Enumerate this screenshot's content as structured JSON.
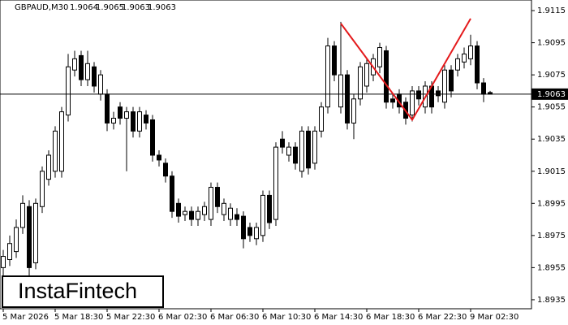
{
  "chart_data": {
    "type": "candlestick",
    "title": "GBPAUD,M30",
    "watermark": "InstaFintech",
    "categories": [
      "5 Mar 2026",
      null,
      null,
      null,
      null,
      null,
      null,
      null,
      "5 Mar 18:30",
      null,
      null,
      null,
      null,
      null,
      null,
      null,
      "5 Mar 22:30",
      null,
      null,
      null,
      null,
      null,
      null,
      null,
      "6 Mar 02:30",
      null,
      null,
      null,
      null,
      null,
      null,
      null,
      "6 Mar 06:30",
      null,
      null,
      null,
      null,
      null,
      null,
      null,
      "6 Mar 10:30",
      null,
      null,
      null,
      null,
      null,
      null,
      null,
      "6 Mar 14:30",
      null,
      null,
      null,
      null,
      null,
      null,
      null,
      "6 Mar 18:30",
      null,
      null,
      null,
      null,
      null,
      null,
      null,
      "6 Mar 22:30",
      null,
      null,
      null,
      null,
      null,
      null,
      null,
      "9 Mar 02:30",
      null,
      null,
      null
    ],
    "series": {
      "open": [
        1.8955,
        1.896,
        1.8965,
        1.898,
        1.8993,
        1.8958,
        1.8993,
        1.901,
        1.9015,
        1.9015,
        1.905,
        1.9078,
        1.9087,
        1.9072,
        1.908,
        1.9063,
        1.9063,
        1.9045,
        1.9055,
        1.9048,
        1.9052,
        1.904,
        1.905,
        1.9047,
        1.9025,
        1.902,
        1.9012,
        1.8995,
        1.8988,
        1.899,
        1.8985,
        1.8988,
        1.8985,
        1.9005,
        1.8988,
        1.8985,
        1.8988,
        1.8987,
        1.898,
        1.8973,
        1.8975,
        1.9,
        1.8985,
        1.9035,
        1.9025,
        1.903,
        1.9015,
        1.904,
        1.902,
        1.904,
        1.9055,
        1.9093,
        1.9055,
        1.9075,
        1.9045,
        1.906,
        1.9068,
        1.9075,
        1.908,
        1.909,
        1.906,
        1.9063,
        1.9058,
        1.905,
        1.9065,
        1.9055,
        1.9068,
        1.9065,
        1.9058,
        1.9078,
        1.9078,
        1.9083,
        1.9085,
        1.9093,
        1.907,
        1.9064
      ],
      "high": [
        1.8966,
        1.8975,
        1.8985,
        1.9,
        1.8997,
        1.8998,
        1.9018,
        1.9028,
        1.9043,
        1.9055,
        1.9088,
        1.909,
        1.909,
        1.909,
        1.9083,
        1.9078,
        1.9066,
        1.9052,
        1.9058,
        1.9055,
        1.9055,
        1.9055,
        1.9053,
        1.905,
        1.9028,
        1.9023,
        1.9015,
        1.8998,
        1.8993,
        1.8993,
        1.8993,
        1.8996,
        1.9008,
        1.9008,
        1.8998,
        1.8995,
        1.8992,
        1.899,
        1.8983,
        1.8983,
        1.9003,
        1.9003,
        1.9033,
        1.904,
        1.9033,
        1.9033,
        1.9043,
        1.9043,
        1.9043,
        1.9058,
        1.9098,
        1.9096,
        1.9108,
        1.9078,
        1.9063,
        1.9083,
        1.9085,
        1.9088,
        1.9095,
        1.9093,
        1.9063,
        1.9066,
        1.9061,
        1.9068,
        1.9068,
        1.9071,
        1.9071,
        1.9068,
        1.9081,
        1.9081,
        1.9088,
        1.9092,
        1.91,
        1.9096,
        1.9073,
        1.9065
      ],
      "low": [
        1.895,
        1.8956,
        1.8961,
        1.8976,
        1.895,
        1.8954,
        1.8989,
        1.9006,
        1.9011,
        1.9011,
        1.9046,
        1.9074,
        1.9068,
        1.9068,
        1.9064,
        1.9059,
        1.904,
        1.9041,
        1.9044,
        1.9015,
        1.9036,
        1.9036,
        1.9041,
        1.9021,
        1.9018,
        1.9008,
        1.8986,
        1.8983,
        1.8984,
        1.8981,
        1.8981,
        1.8984,
        1.8981,
        1.8989,
        1.8984,
        1.8981,
        1.8981,
        1.8967,
        1.8971,
        1.8969,
        1.8971,
        1.8979,
        1.8981,
        1.9026,
        1.9021,
        1.9016,
        1.9011,
        1.9013,
        1.9016,
        1.9036,
        1.9051,
        1.9071,
        1.9051,
        1.9041,
        1.9035,
        1.9056,
        1.9064,
        1.9071,
        1.9076,
        1.9054,
        1.9054,
        1.9051,
        1.9044,
        1.9046,
        1.9056,
        1.9051,
        1.9051,
        1.9058,
        1.9054,
        1.9061,
        1.9074,
        1.9079,
        1.9081,
        1.9066,
        1.9058,
        1.9063
      ],
      "close": [
        1.8962,
        1.897,
        1.898,
        1.8995,
        1.8955,
        1.8995,
        1.9015,
        1.9025,
        1.904,
        1.9052,
        1.908,
        1.9085,
        1.9072,
        1.9082,
        1.9068,
        1.9075,
        1.9045,
        1.9048,
        1.9048,
        1.9052,
        1.904,
        1.9052,
        1.9045,
        1.9025,
        1.9022,
        1.9012,
        1.899,
        1.8987,
        1.899,
        1.8985,
        1.899,
        1.8993,
        1.9005,
        1.8993,
        1.8995,
        1.8992,
        1.8985,
        1.8973,
        1.8975,
        1.898,
        1.9,
        1.8983,
        1.903,
        1.903,
        1.903,
        1.902,
        1.904,
        1.9017,
        1.904,
        1.9055,
        1.9093,
        1.9075,
        1.9075,
        1.9045,
        1.906,
        1.908,
        1.9082,
        1.9085,
        1.9092,
        1.9058,
        1.9058,
        1.9055,
        1.9048,
        1.9065,
        1.906,
        1.9068,
        1.9055,
        1.9062,
        1.9078,
        1.9065,
        1.9085,
        1.9088,
        1.9093,
        1.907,
        1.9063,
        1.9063
      ]
    },
    "bull_color": "#ffffff",
    "bear_color": "#000000",
    "pattern": {
      "x": [
        52,
        63,
        72
      ],
      "values": [
        1.9107,
        1.9047,
        1.911
      ],
      "color": "#e41a1c"
    },
    "ylim": [
      1.89294,
      1.91216
    ],
    "yticks": [
      1.8935,
      1.8955,
      1.8975,
      1.8995,
      1.9015,
      1.9035,
      1.9055,
      1.9075,
      1.9095,
      1.9115
    ]
  }
}
